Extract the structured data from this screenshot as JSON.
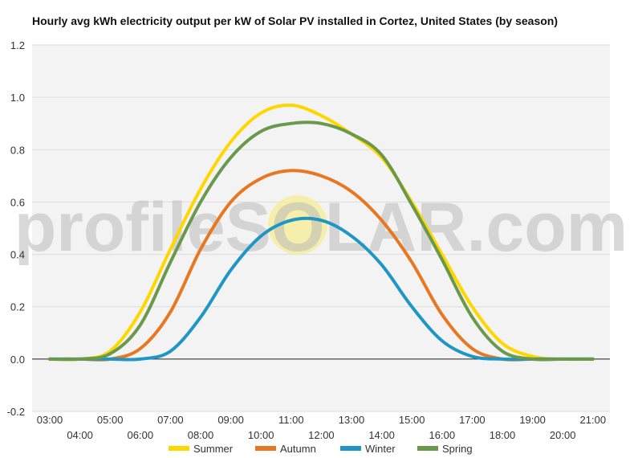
{
  "chart_data": {
    "type": "line",
    "title": "Hourly avg kWh electricity output per kW of Solar PV installed in Cortez, United States (by season)",
    "xlabel": "",
    "ylabel": "",
    "ylim": [
      -0.2,
      1.2
    ],
    "yticks": [
      "-0.2",
      "0.0",
      "0.2",
      "0.4",
      "0.6",
      "0.8",
      "1.0",
      "1.2"
    ],
    "categories": [
      "03:00",
      "04:00",
      "05:00",
      "06:00",
      "07:00",
      "08:00",
      "09:00",
      "10:00",
      "11:00",
      "12:00",
      "13:00",
      "14:00",
      "15:00",
      "16:00",
      "17:00",
      "18:00",
      "19:00",
      "20:00",
      "21:00"
    ],
    "grid": true,
    "legend_position": "bottom",
    "series": [
      {
        "name": "Summer",
        "color": "#FFD700",
        "values": [
          0,
          0,
          0.03,
          0.18,
          0.42,
          0.65,
          0.83,
          0.94,
          0.97,
          0.93,
          0.86,
          0.77,
          0.6,
          0.4,
          0.2,
          0.06,
          0.01,
          0,
          0
        ]
      },
      {
        "name": "Autumn",
        "color": "#E87722",
        "values": [
          0,
          0,
          0,
          0.04,
          0.18,
          0.42,
          0.6,
          0.69,
          0.72,
          0.7,
          0.64,
          0.53,
          0.37,
          0.17,
          0.04,
          0,
          0,
          0,
          0
        ]
      },
      {
        "name": "Winter",
        "color": "#1F96C4",
        "values": [
          0,
          0,
          0,
          0,
          0.03,
          0.16,
          0.34,
          0.47,
          0.53,
          0.53,
          0.47,
          0.36,
          0.2,
          0.07,
          0.01,
          0,
          0,
          0,
          0
        ]
      },
      {
        "name": "Spring",
        "color": "#6A994E",
        "values": [
          0,
          0,
          0.02,
          0.13,
          0.37,
          0.6,
          0.77,
          0.87,
          0.9,
          0.9,
          0.86,
          0.78,
          0.59,
          0.38,
          0.16,
          0.03,
          0,
          0,
          0
        ]
      }
    ],
    "watermark": "profileSOLAR.com"
  }
}
